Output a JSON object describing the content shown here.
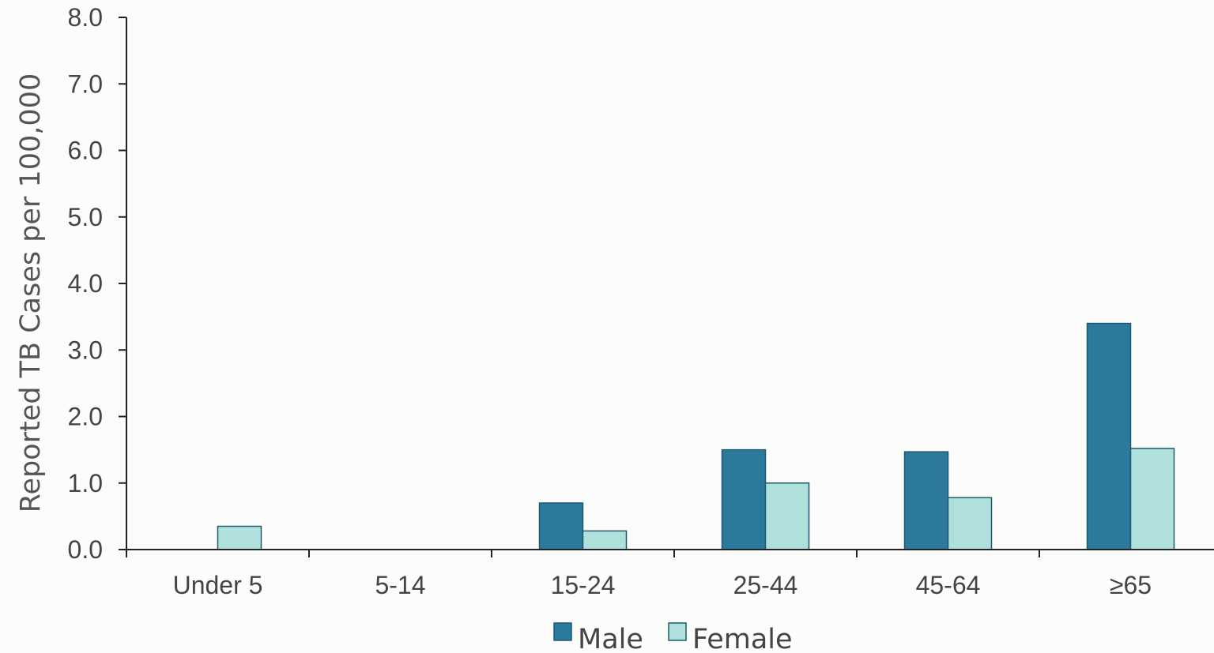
{
  "chart_data": {
    "type": "bar",
    "categories": [
      "Under 5",
      "5-14",
      "15-24",
      "25-44",
      "45-64",
      "≥65"
    ],
    "series": [
      {
        "name": "Male",
        "values": [
          0.0,
          0.0,
          0.7,
          1.5,
          1.47,
          3.4
        ],
        "color": "#2b7a9b"
      },
      {
        "name": "Female",
        "values": [
          0.35,
          0.0,
          0.28,
          1.0,
          0.78,
          1.52
        ],
        "color": "#b0e0dc"
      }
    ],
    "ylabel": "Reported TB Cases per 100,000",
    "xlabel": "",
    "ylim": [
      0,
      8
    ],
    "yticks": [
      "0.0",
      "1.0",
      "2.0",
      "3.0",
      "4.0",
      "5.0",
      "6.0",
      "7.0",
      "8.0"
    ],
    "legend_position": "bottom-center",
    "grid": false
  }
}
